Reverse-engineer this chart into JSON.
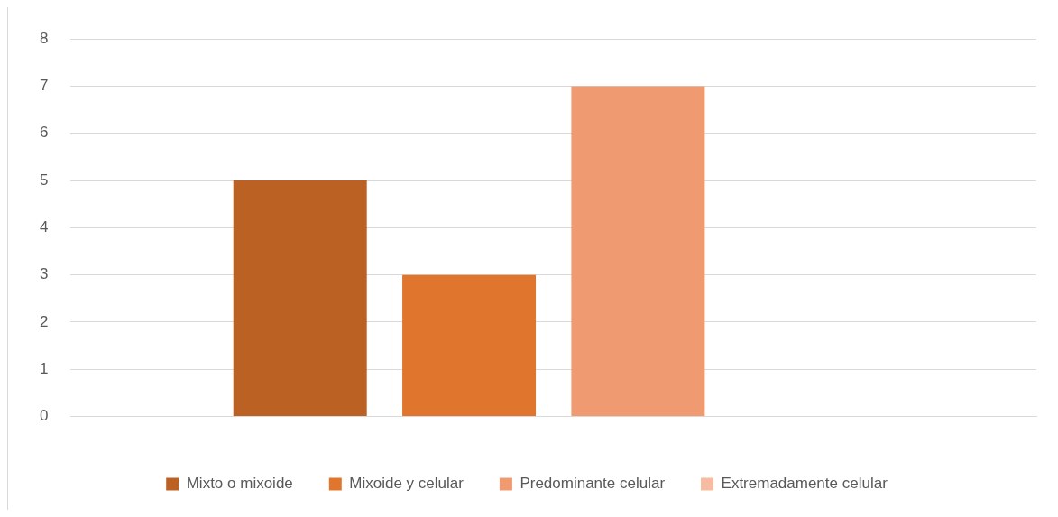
{
  "chart_data": {
    "type": "bar",
    "categories": [
      null
    ],
    "series": [
      {
        "name": "Mixto o mixoide",
        "color": "#bc6124",
        "values": [
          5
        ]
      },
      {
        "name": "Mixoide y celular",
        "color": "#e0762e",
        "values": [
          3
        ]
      },
      {
        "name": "Predominante celular",
        "color": "#f09a72",
        "values": [
          7
        ]
      },
      {
        "name": "Extremadamente celular",
        "color": "#f7bba1",
        "values": [
          0
        ]
      }
    ],
    "ylim": [
      0,
      8
    ],
    "yticks": [
      0,
      1,
      2,
      3,
      4,
      5,
      6,
      7,
      8
    ],
    "grid": "y",
    "legend": "bottom"
  }
}
